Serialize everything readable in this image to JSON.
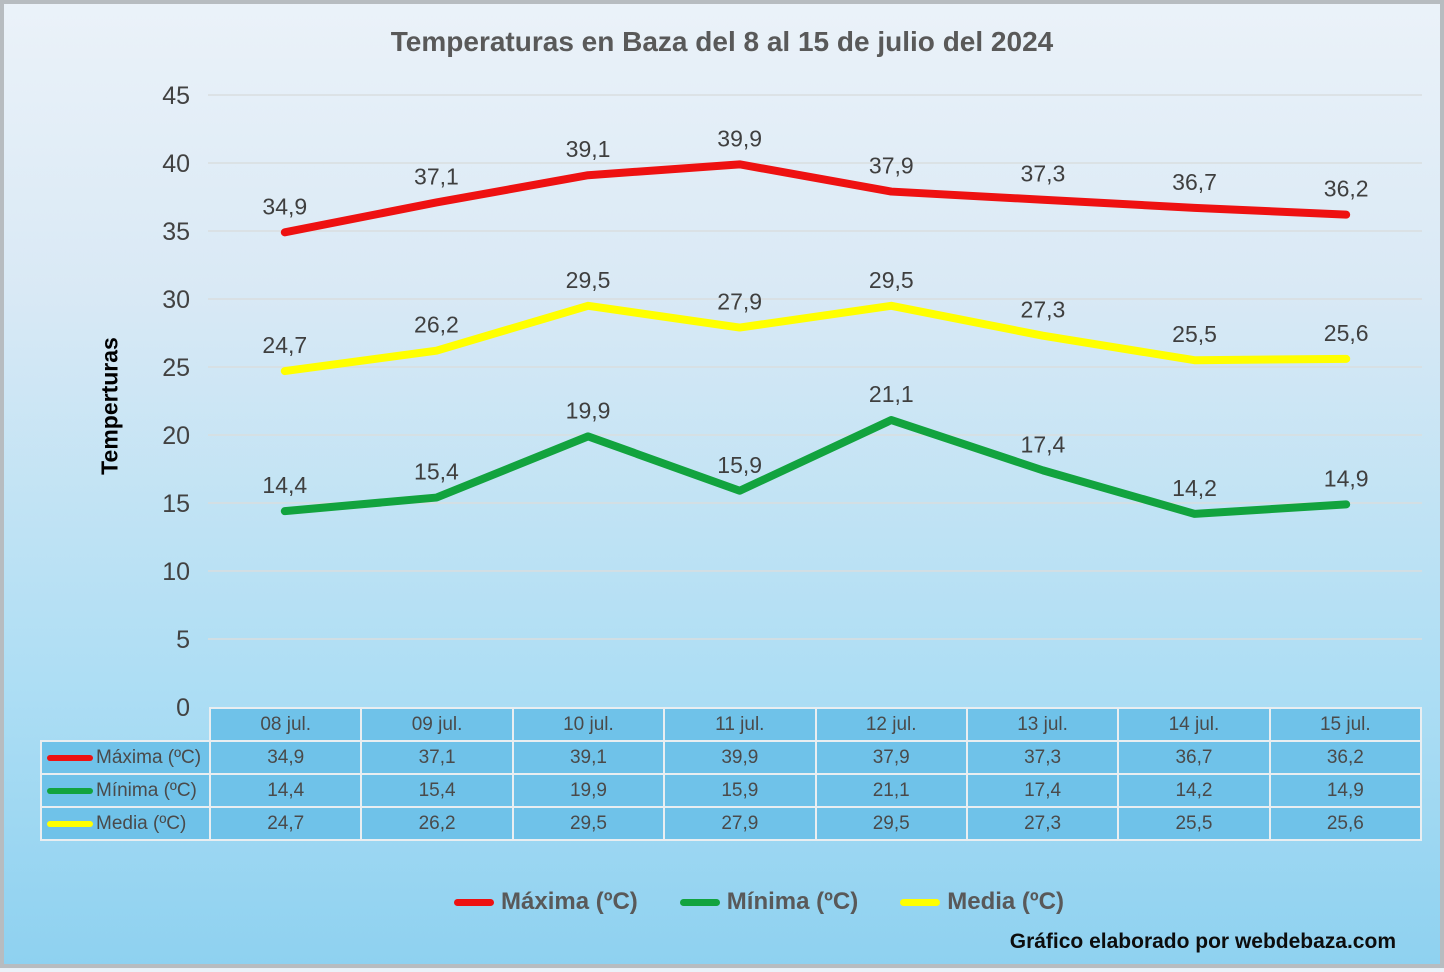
{
  "title": "Temperaturas en Baza del 8 al 15 de julio del 2024",
  "y_axis_title": "Temperturas",
  "credit": "Gráfico elaborado por webdebaza.com",
  "chart_data": {
    "type": "line",
    "title": "Temperaturas en Baza del 8 al 15 de julio del 2024",
    "xlabel": "",
    "ylabel": "Temperturas",
    "ylim": [
      0,
      45
    ],
    "ytick_step": 5,
    "grid": true,
    "legend_position": "bottom",
    "decimal_separator": ",",
    "categories": [
      "08 jul.",
      "09 jul.",
      "10 jul.",
      "11 jul.",
      "12 jul.",
      "13 jul.",
      "14 jul.",
      "15 jul."
    ],
    "series": [
      {
        "name": "Máxima (ºC)",
        "color": "#ee1111",
        "values": [
          34.9,
          37.1,
          39.1,
          39.9,
          37.9,
          37.3,
          36.7,
          36.2
        ]
      },
      {
        "name": "Mínima (ºC)",
        "color": "#12a33e",
        "values": [
          14.4,
          15.4,
          19.9,
          15.9,
          21.1,
          17.4,
          14.2,
          14.9
        ]
      },
      {
        "name": "Media (ºC)",
        "color": "#ffff00",
        "values": [
          24.7,
          26.2,
          29.5,
          27.9,
          29.5,
          27.3,
          25.5,
          25.6
        ]
      }
    ],
    "grid_color": "#d9dedf"
  }
}
